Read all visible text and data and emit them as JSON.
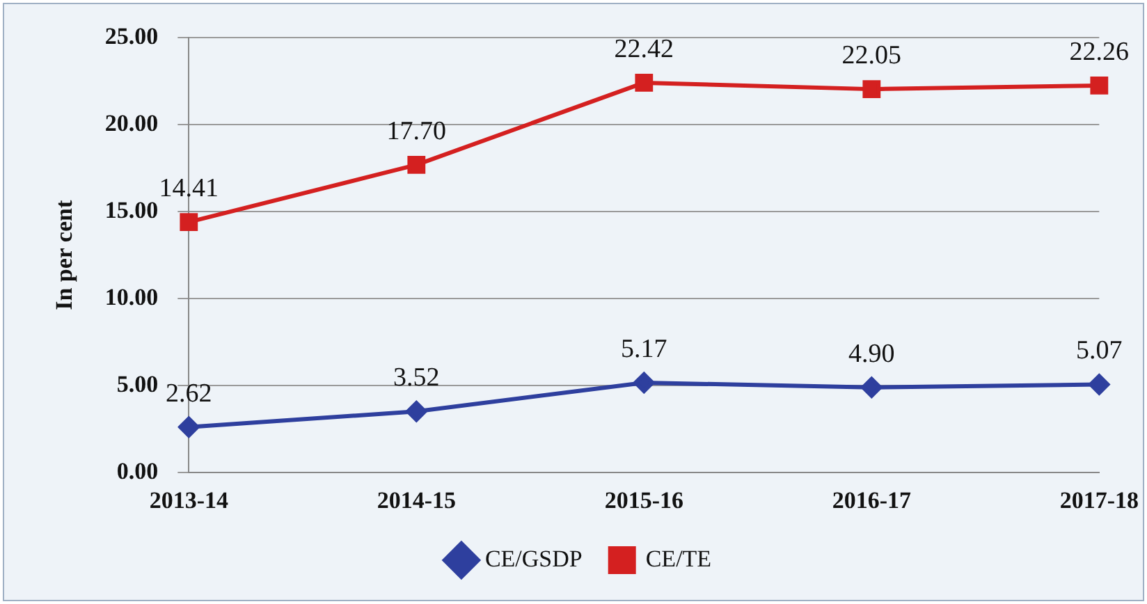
{
  "chart_data": {
    "type": "line",
    "ylabel": "In per cent",
    "categories": [
      "2013-14",
      "2014-15",
      "2015-16",
      "2016-17",
      "2017-18"
    ],
    "series": [
      {
        "name": "CE/GSDP",
        "color": "#2e3f9e",
        "marker": "diamond",
        "values": [
          2.62,
          3.52,
          5.17,
          4.9,
          5.07
        ],
        "value_labels": [
          "2.62",
          "3.52",
          "5.17",
          "4.90",
          "5.07"
        ]
      },
      {
        "name": "CE/TE",
        "color": "#d42020",
        "marker": "square",
        "values": [
          14.41,
          17.7,
          22.42,
          22.05,
          22.26
        ],
        "value_labels": [
          "14.41",
          "17.70",
          "22.42",
          "22.05",
          "22.26"
        ]
      }
    ],
    "ylim": [
      0,
      25
    ],
    "yticks": [
      {
        "value": 0,
        "label": "0.00"
      },
      {
        "value": 5,
        "label": "5.00"
      },
      {
        "value": 10,
        "label": "10.00"
      },
      {
        "value": 15,
        "label": "15.00"
      },
      {
        "value": 20,
        "label": "20.00"
      },
      {
        "value": 25,
        "label": "25.00"
      }
    ],
    "grid": "y",
    "legend": "bottom",
    "line_style": "solid"
  }
}
